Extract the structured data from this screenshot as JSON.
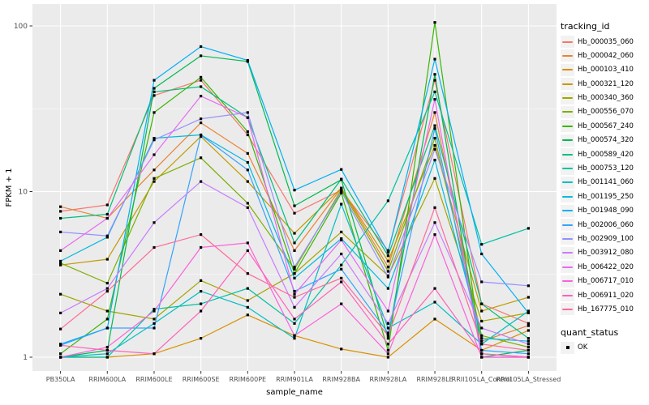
{
  "chart_data": {
    "type": "line",
    "title": "",
    "xlabel": "sample_name",
    "ylabel": "FPKM + 1",
    "y_scale": "log10",
    "y_ticks": [
      1,
      10,
      100
    ],
    "ylim_log": [
      0.94,
      110
    ],
    "grid": "on",
    "panel_bg": "#EBEBEB",
    "grid_color": "#FFFFFF",
    "tick_label_color": "#4D4D4D",
    "point_marker": "black-square",
    "x_categories": [
      "PB350LA",
      "RRIM600LA",
      "RRIM600LE",
      "RRIM600SE",
      "RRIM600PE",
      "RRIM901LA",
      "RRIM928BA",
      "RRIM928LA",
      "RRIM928LE",
      "RRII105LA_Control",
      "RRII105LA_Stressed"
    ],
    "series": [
      {
        "name": "Hb_000035_060",
        "color": "#F8766D",
        "values": [
          7.6,
          8.3,
          38,
          47,
          22,
          7.4,
          10.2,
          4.4,
          47,
          2.1,
          1.6
        ]
      },
      {
        "name": "Hb_000042_060",
        "color": "#EA8331",
        "values": [
          8.1,
          6.9,
          13.5,
          26,
          17,
          4.4,
          10.5,
          3.5,
          30,
          1.25,
          1.55
        ]
      },
      {
        "name": "Hb_000103_410",
        "color": "#D89000",
        "values": [
          1.0,
          1.0,
          1.05,
          1.3,
          1.8,
          1.35,
          1.12,
          1.0,
          1.7,
          1.1,
          1.45
        ]
      },
      {
        "name": "Hb_000321_120",
        "color": "#C09B00",
        "values": [
          3.6,
          3.9,
          11.5,
          21.5,
          11.5,
          5.6,
          10.5,
          3.8,
          19,
          1.9,
          2.3
        ]
      },
      {
        "name": "Hb_000340_360",
        "color": "#A3A500",
        "values": [
          2.4,
          1.9,
          1.7,
          2.9,
          2.2,
          3.2,
          5.7,
          3.1,
          12,
          1.65,
          1.85
        ]
      },
      {
        "name": "Hb_000556_070",
        "color": "#7CAE00",
        "values": [
          3.7,
          2.8,
          12,
          16,
          8.5,
          3.4,
          10.3,
          3.3,
          21,
          1.35,
          1.15
        ]
      },
      {
        "name": "Hb_000567_240",
        "color": "#39B600",
        "values": [
          1.05,
          1.7,
          30,
          49,
          23,
          3.2,
          9.8,
          1.1,
          105,
          1.05,
          1.0
        ]
      },
      {
        "name": "Hb_000574_320",
        "color": "#00BB4E",
        "values": [
          1.0,
          1.1,
          42,
          66,
          61,
          8.2,
          11.8,
          1.3,
          51,
          1.0,
          1.1
        ]
      },
      {
        "name": "Hb_000589_420",
        "color": "#00BF7D",
        "values": [
          6.9,
          7.3,
          40,
          43,
          28,
          4.9,
          11.9,
          4.1,
          25,
          2.1,
          1.3
        ]
      },
      {
        "name": "Hb_000753_120",
        "color": "#00C1A3",
        "values": [
          1.0,
          1.0,
          1.95,
          2.1,
          2.6,
          1.6,
          3.6,
          8.8,
          40,
          4.8,
          6.0
        ]
      },
      {
        "name": "Hb_001141_060",
        "color": "#00BFC4",
        "values": [
          1.0,
          1.05,
          1.6,
          2.5,
          2.0,
          1.3,
          8.4,
          1.5,
          2.15,
          1.2,
          1.9
        ]
      },
      {
        "name": "Hb_001195_250",
        "color": "#00BAE0",
        "values": [
          3.8,
          5.3,
          21,
          22,
          15,
          3.0,
          5.2,
          2.6,
          15.5,
          1.3,
          1.25
        ]
      },
      {
        "name": "Hb_001948_090",
        "color": "#00B0F6",
        "values": [
          1.2,
          1.5,
          47,
          75,
          62,
          10.2,
          13.6,
          4.3,
          63,
          4.2,
          1.85
        ]
      },
      {
        "name": "Hb_002006_060",
        "color": "#35A2FF",
        "values": [
          1.18,
          1.5,
          1.5,
          21.9,
          13.5,
          2.5,
          3.4,
          1.4,
          24,
          1.1,
          1.05
        ]
      },
      {
        "name": "Hb_002909_100",
        "color": "#9590FF",
        "values": [
          5.7,
          5.4,
          20.5,
          27.5,
          30,
          3.5,
          10.0,
          3.05,
          18,
          2.85,
          2.7
        ]
      },
      {
        "name": "Hb_003912_080",
        "color": "#C77CFF",
        "values": [
          1.85,
          2.6,
          6.5,
          11.5,
          8.0,
          2.0,
          4.2,
          1.6,
          6.5,
          1.5,
          1.2
        ]
      },
      {
        "name": "Hb_006422_020",
        "color": "#E76BF3",
        "values": [
          4.4,
          6.9,
          16.7,
          37.7,
          28,
          2.4,
          5.1,
          1.9,
          36,
          1.0,
          1.0
        ]
      },
      {
        "name": "Hb_006717_010",
        "color": "#FA62DB",
        "values": [
          1.0,
          1.15,
          1.9,
          4.6,
          4.9,
          1.35,
          2.1,
          1.05,
          5.5,
          1.0,
          1.0
        ]
      },
      {
        "name": "Hb_006911_020",
        "color": "#FF62BC",
        "values": [
          1.18,
          1.1,
          1.05,
          1.9,
          4.4,
          1.7,
          2.85,
          1.2,
          2.6,
          1.05,
          1.0
        ]
      },
      {
        "name": "Hb_167775_010",
        "color": "#FF6A98",
        "values": [
          1.48,
          2.5,
          4.6,
          5.5,
          3.2,
          2.3,
          3.0,
          1.35,
          8.0,
          1.2,
          1.1
        ]
      }
    ],
    "legend": {
      "position": "right",
      "color_title": "tracking_id",
      "shape_title": "quant_status",
      "shape_entries": [
        {
          "label": "OK",
          "marker": "black-square"
        }
      ]
    }
  }
}
